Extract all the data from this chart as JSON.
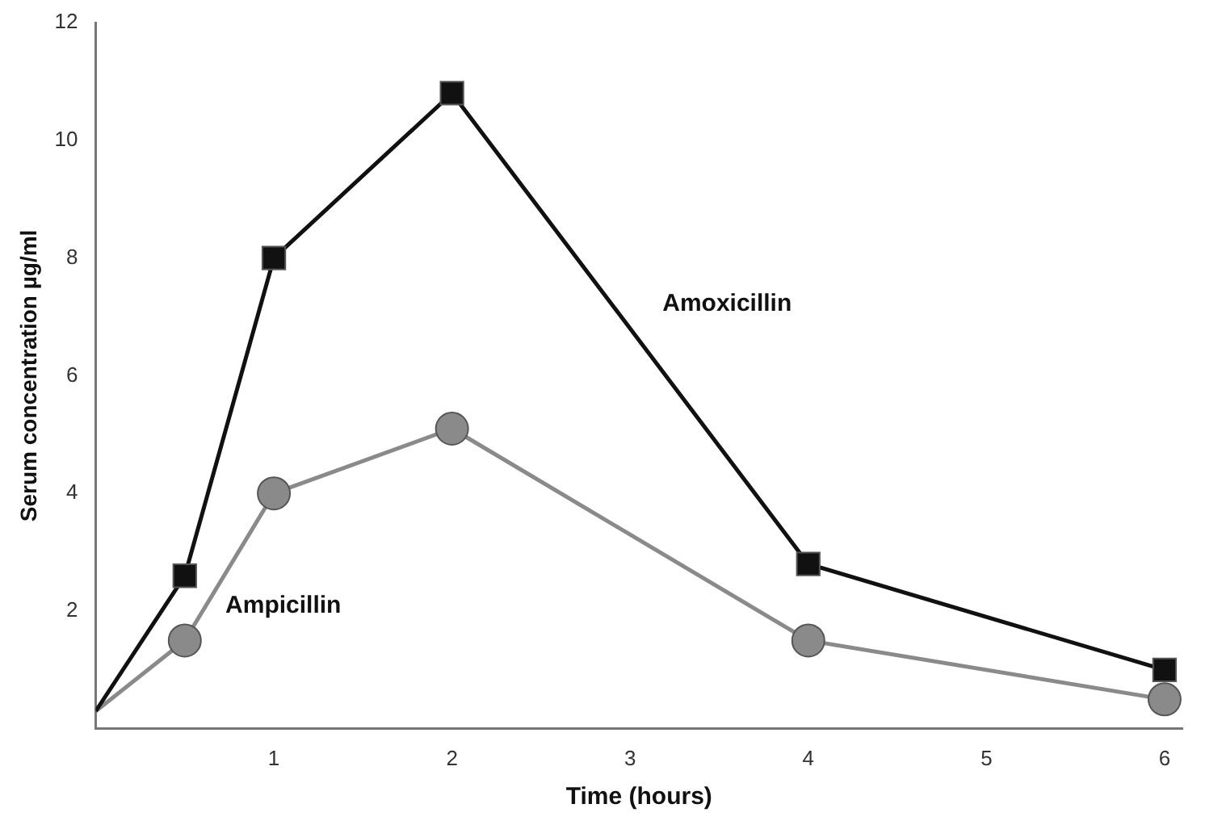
{
  "chart_data": {
    "type": "line",
    "xlabel": "Time (hours)",
    "ylabel": "Serum concentration µg/ml",
    "x": [
      0,
      0.5,
      1,
      2,
      4,
      6
    ],
    "series": [
      {
        "name": "Amoxicillin",
        "color": "#111111",
        "marker": "square",
        "values": [
          0.3,
          2.6,
          8.0,
          10.8,
          2.8,
          1.0
        ]
      },
      {
        "name": "Ampicillin",
        "color": "#8a8a8a",
        "marker": "circle",
        "values": [
          0.3,
          1.5,
          4.0,
          5.1,
          1.5,
          0.5
        ]
      }
    ],
    "xlim": [
      0,
      6.1
    ],
    "ylim": [
      0,
      12
    ],
    "xticks": [
      1,
      2,
      3,
      4,
      5,
      6
    ],
    "yticks": [
      2,
      4,
      6,
      8,
      10,
      12
    ],
    "grid": false,
    "legend": false
  }
}
